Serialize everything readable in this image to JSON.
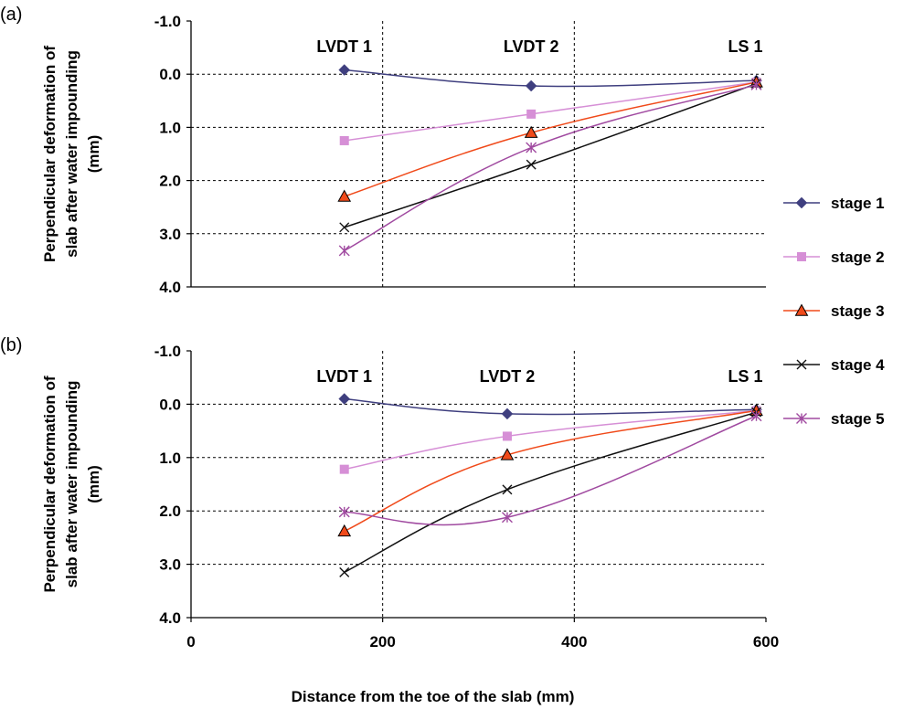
{
  "chart_data": [
    {
      "type": "line",
      "panel_label": "(a)",
      "ylabel_lines": [
        "Perpendicular deformation of",
        "slab after water impounding",
        "(mm)"
      ],
      "yticks": [
        "-1.0",
        "0.0",
        "1.0",
        "2.0",
        "3.0",
        "4.0"
      ],
      "yticks_values": [
        -1,
        0,
        1,
        2,
        3,
        4
      ],
      "ylim": [
        -1,
        4
      ],
      "y_inverted": true,
      "xlim": [
        0,
        600
      ],
      "vlines": [
        200,
        400
      ],
      "hgrid": [
        0,
        1,
        2,
        3
      ],
      "region_labels": [
        {
          "text": "LVDT 1",
          "x": 160
        },
        {
          "text": "LVDT 2",
          "x": 355
        },
        {
          "text": "LS 1",
          "x": 590
        }
      ],
      "series": [
        {
          "name": "stage 1",
          "color": "#3f3f7f",
          "marker": "diamond",
          "x": [
            160,
            355,
            590
          ],
          "y": [
            -0.08,
            0.22,
            0.12
          ]
        },
        {
          "name": "stage 2",
          "color": "#d68fd6",
          "marker": "square",
          "x": [
            160,
            355,
            590
          ],
          "y": [
            1.25,
            0.75,
            0.15
          ]
        },
        {
          "name": "stage 3",
          "color": "#f04a1a",
          "marker": "triangle",
          "x": [
            160,
            355,
            590
          ],
          "y": [
            2.3,
            1.1,
            0.15
          ]
        },
        {
          "name": "stage 4",
          "color": "#111111",
          "marker": "x",
          "x": [
            160,
            355,
            590
          ],
          "y": [
            2.88,
            1.7,
            0.18
          ]
        },
        {
          "name": "stage 5",
          "color": "#a04aa0",
          "marker": "star",
          "x": [
            160,
            355,
            590
          ],
          "y": [
            3.32,
            1.38,
            0.2
          ]
        }
      ]
    },
    {
      "type": "line",
      "panel_label": "(b)",
      "ylabel_lines": [
        "Perpendicular deformation of",
        "slab after water impounding",
        "(mm)"
      ],
      "yticks": [
        "-1.0",
        "0.0",
        "1.0",
        "2.0",
        "3.0",
        "4.0"
      ],
      "yticks_values": [
        -1,
        0,
        1,
        2,
        3,
        4
      ],
      "ylim": [
        -1,
        4
      ],
      "y_inverted": true,
      "xlim": [
        0,
        600
      ],
      "xticks": [
        "0",
        "200",
        "400",
        "600"
      ],
      "xticks_values": [
        0,
        200,
        400,
        600
      ],
      "xlabel": "Distance from the toe of the slab (mm)",
      "vlines": [
        200,
        400
      ],
      "hgrid": [
        0,
        1,
        2,
        3
      ],
      "region_labels": [
        {
          "text": "LVDT 1",
          "x": 160
        },
        {
          "text": "LVDT 2",
          "x": 330
        },
        {
          "text": "LS 1",
          "x": 590
        }
      ],
      "series": [
        {
          "name": "stage 1",
          "color": "#3f3f7f",
          "marker": "diamond",
          "x": [
            160,
            330,
            590
          ],
          "y": [
            -0.1,
            0.18,
            0.1
          ]
        },
        {
          "name": "stage 2",
          "color": "#d68fd6",
          "marker": "square",
          "x": [
            160,
            330,
            590
          ],
          "y": [
            1.22,
            0.6,
            0.12
          ]
        },
        {
          "name": "stage 3",
          "color": "#f04a1a",
          "marker": "triangle",
          "x": [
            160,
            330,
            590
          ],
          "y": [
            2.38,
            0.95,
            0.12
          ]
        },
        {
          "name": "stage 4",
          "color": "#111111",
          "marker": "x",
          "x": [
            160,
            330,
            590
          ],
          "y": [
            3.15,
            1.6,
            0.15
          ]
        },
        {
          "name": "stage 5",
          "color": "#a04aa0",
          "marker": "star",
          "x": [
            160,
            330,
            590
          ],
          "y": [
            2.02,
            2.12,
            0.22
          ]
        }
      ]
    }
  ],
  "legend": {
    "placement": "right",
    "entries": [
      {
        "name": "stage 1",
        "color": "#3f3f7f",
        "marker": "diamond"
      },
      {
        "name": "stage 2",
        "color": "#d68fd6",
        "marker": "square"
      },
      {
        "name": "stage 3",
        "color": "#f04a1a",
        "marker": "triangle"
      },
      {
        "name": "stage 4",
        "color": "#111111",
        "marker": "x"
      },
      {
        "name": "stage 5",
        "color": "#a04aa0",
        "marker": "star"
      }
    ]
  }
}
